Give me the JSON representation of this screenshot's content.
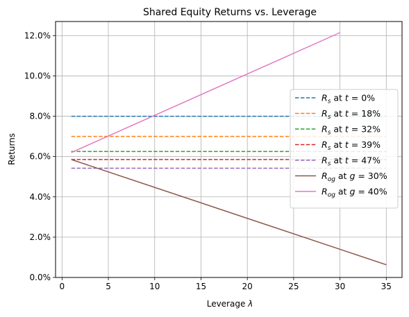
{
  "chart_data": {
    "type": "line",
    "title": "Shared Equity Returns vs. Leverage",
    "xlabel_prefix": "Leverage ",
    "xlabel_symbol": "λ",
    "ylabel": "Returns",
    "xlim": [
      -0.7,
      36.7
    ],
    "ylim": [
      0,
      0.127
    ],
    "x_ticks": [
      0,
      5,
      10,
      15,
      20,
      25,
      30,
      35
    ],
    "y_ticks": [
      0,
      0.02,
      0.04,
      0.06,
      0.08,
      0.1,
      0.12
    ],
    "y_tick_labels": [
      "0.0%",
      "2.0%",
      "4.0%",
      "6.0%",
      "8.0%",
      "10.0%",
      "12.0%"
    ],
    "grid": true,
    "legend_position": "center-right",
    "series": [
      {
        "var": "R",
        "sub": "s",
        "cond": "t",
        "val": "0%",
        "name": "R_s at t = 0%",
        "color": "#1f77b4",
        "dashed": true,
        "x": [
          1,
          35
        ],
        "y": [
          0.08,
          0.08
        ]
      },
      {
        "var": "R",
        "sub": "s",
        "cond": "t",
        "val": "18%",
        "name": "R_s at t = 18%",
        "color": "#ff7f0e",
        "dashed": true,
        "x": [
          1,
          35
        ],
        "y": [
          0.07,
          0.07
        ]
      },
      {
        "var": "R",
        "sub": "s",
        "cond": "t",
        "val": "32%",
        "name": "R_s at t = 32%",
        "color": "#2ca02c",
        "dashed": true,
        "x": [
          1,
          35
        ],
        "y": [
          0.0625,
          0.0625
        ]
      },
      {
        "var": "R",
        "sub": "s",
        "cond": "t",
        "val": "39%",
        "name": "R_s at t = 39%",
        "color": "#d62728",
        "dashed": true,
        "x": [
          1,
          35
        ],
        "y": [
          0.0585,
          0.0585
        ]
      },
      {
        "var": "R",
        "sub": "s",
        "cond": "t",
        "val": "47%",
        "name": "R_s at t = 47%",
        "color": "#9467bd",
        "dashed": true,
        "x": [
          1,
          35
        ],
        "y": [
          0.0542,
          0.0542
        ]
      },
      {
        "var": "R",
        "sub": "og",
        "cond": "g",
        "val": "30%",
        "name": "R_og at g = 30%",
        "color": "#8c564b",
        "dashed": false,
        "x": [
          1,
          35
        ],
        "y": [
          0.0585,
          0.0063
        ]
      },
      {
        "var": "R",
        "sub": "og",
        "cond": "g",
        "val": "40%",
        "name": "R_og at g = 40%",
        "color": "#e377c2",
        "dashed": false,
        "x": [
          1,
          30
        ],
        "y": [
          0.062,
          0.1215
        ]
      }
    ]
  }
}
